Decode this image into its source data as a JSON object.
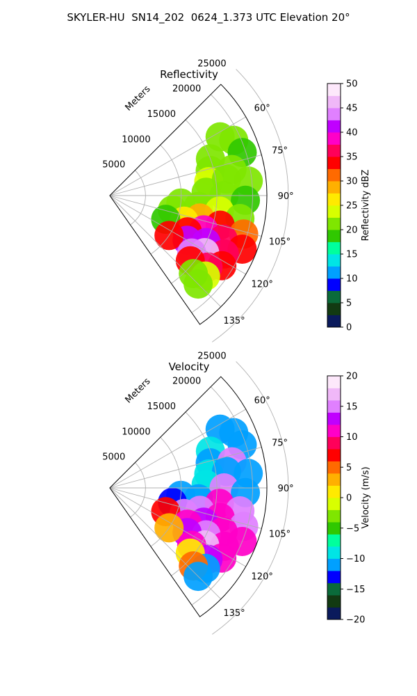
{
  "title": "SKYLER-HU  SN14_202  0624_1.373 UTC Elevation 20°",
  "chart_data": [
    {
      "type": "heatmap",
      "projection": "polar-sector",
      "title": "Reflectivity",
      "radial_label": "Meters",
      "radial_ticks": [
        "5000",
        "10000",
        "15000",
        "20000",
        "25000"
      ],
      "radial_tick_values": [
        5000,
        10000,
        15000,
        20000,
        25000
      ],
      "angle_ticks": [
        "60°",
        "75°",
        "90°",
        "105°",
        "120°",
        "135°"
      ],
      "angle_tick_values": [
        60,
        75,
        90,
        105,
        120,
        135
      ],
      "r_range": [
        0,
        22000
      ],
      "theta_range": [
        45,
        145
      ],
      "grid": true,
      "colorbar": {
        "label": "Reflectivity dBZ",
        "range": [
          0,
          50
        ],
        "ticks": [
          "0",
          "5",
          "10",
          "15",
          "20",
          "25",
          "30",
          "35",
          "40",
          "45",
          "50"
        ],
        "tick_values": [
          0,
          5,
          10,
          15,
          20,
          25,
          30,
          35,
          40,
          45,
          50
        ],
        "colors": [
          "#0a1a5c",
          "#123a12",
          "#0a6b3a",
          "#0000ff",
          "#00a0ff",
          "#00e5e5",
          "#00ff9c",
          "#30c800",
          "#7fe600",
          "#d8ff00",
          "#ffea00",
          "#ffb000",
          "#ff6a00",
          "#ff0000",
          "#ff005a",
          "#ff00c8",
          "#c000ff",
          "#e080ff",
          "#f0b8f8",
          "#fde8fb"
        ]
      },
      "cells": [
        {
          "az": 62,
          "r": 17500,
          "v": 22
        },
        {
          "az": 66,
          "r": 19000,
          "v": 21
        },
        {
          "az": 70,
          "r": 15000,
          "v": 20
        },
        {
          "az": 72,
          "r": 19500,
          "v": 19
        },
        {
          "az": 76,
          "r": 14500,
          "v": 21
        },
        {
          "az": 78,
          "r": 17500,
          "v": 22
        },
        {
          "az": 82,
          "r": 14000,
          "v": 23
        },
        {
          "az": 82,
          "r": 16500,
          "v": 22
        },
        {
          "az": 84,
          "r": 19500,
          "v": 20
        },
        {
          "az": 88,
          "r": 13500,
          "v": 22
        },
        {
          "az": 90,
          "r": 16000,
          "v": 21
        },
        {
          "az": 92,
          "r": 19000,
          "v": 19
        },
        {
          "az": 96,
          "r": 10000,
          "v": 21
        },
        {
          "az": 97,
          "r": 12500,
          "v": 22
        },
        {
          "az": 98,
          "r": 15500,
          "v": 24
        },
        {
          "az": 100,
          "r": 18500,
          "v": 20
        },
        {
          "az": 103,
          "r": 9000,
          "v": 20
        },
        {
          "az": 104,
          "r": 13000,
          "v": 28
        },
        {
          "az": 105,
          "r": 16000,
          "v": 33
        },
        {
          "az": 106,
          "r": 19500,
          "v": 30
        },
        {
          "az": 109,
          "r": 11000,
          "v": 26
        },
        {
          "az": 110,
          "r": 14000,
          "v": 38
        },
        {
          "az": 111,
          "r": 17000,
          "v": 36
        },
        {
          "az": 112,
          "r": 20000,
          "v": 34
        },
        {
          "az": 113,
          "r": 8500,
          "v": 18
        },
        {
          "az": 115,
          "r": 12000,
          "v": 33
        },
        {
          "az": 116,
          "r": 15000,
          "v": 42
        },
        {
          "az": 117,
          "r": 18000,
          "v": 37
        },
        {
          "az": 120,
          "r": 12500,
          "v": 41
        },
        {
          "az": 121,
          "r": 15500,
          "v": 47
        },
        {
          "az": 122,
          "r": 18500,
          "v": 33
        },
        {
          "az": 124,
          "r": 10000,
          "v": 34
        },
        {
          "az": 125,
          "r": 14000,
          "v": 44
        },
        {
          "az": 126,
          "r": 17000,
          "v": 36
        },
        {
          "az": 129,
          "r": 14500,
          "v": 33
        },
        {
          "az": 130,
          "r": 17500,
          "v": 24
        },
        {
          "az": 133,
          "r": 16000,
          "v": 22
        },
        {
          "az": 135,
          "r": 17500,
          "v": 20
        }
      ]
    },
    {
      "type": "heatmap",
      "projection": "polar-sector",
      "title": "Velocity",
      "radial_label": "Meters",
      "radial_ticks": [
        "5000",
        "10000",
        "15000",
        "20000",
        "25000"
      ],
      "radial_tick_values": [
        5000,
        10000,
        15000,
        20000,
        25000
      ],
      "angle_ticks": [
        "60°",
        "75°",
        "90°",
        "105°",
        "120°",
        "135°"
      ],
      "angle_tick_values": [
        60,
        75,
        90,
        105,
        120,
        135
      ],
      "r_range": [
        0,
        22000
      ],
      "theta_range": [
        45,
        145
      ],
      "grid": true,
      "colorbar": {
        "label": "Velocity (m/s)",
        "range": [
          -20,
          20
        ],
        "ticks": [
          "−20",
          "−15",
          "−10",
          "−5",
          "0",
          "5",
          "10",
          "15",
          "20"
        ],
        "tick_values": [
          -20,
          -15,
          -10,
          -5,
          0,
          5,
          10,
          15,
          20
        ],
        "colors": [
          "#0a1a5c",
          "#123a12",
          "#0a6b3a",
          "#0000ff",
          "#00a0ff",
          "#00e5e5",
          "#00ff9c",
          "#30c800",
          "#7fe600",
          "#d8ff00",
          "#ffea00",
          "#ffb000",
          "#ff6a00",
          "#ff0000",
          "#ff005a",
          "#ff00c8",
          "#c000ff",
          "#e080ff",
          "#f0b8f8",
          "#fde8fb"
        ]
      },
      "cells": [
        {
          "az": 62,
          "r": 17500,
          "v": -11
        },
        {
          "az": 66,
          "r": 19000,
          "v": -11
        },
        {
          "az": 70,
          "r": 15000,
          "v": -10
        },
        {
          "az": 72,
          "r": 19500,
          "v": -12
        },
        {
          "az": 76,
          "r": 14500,
          "v": -11
        },
        {
          "az": 78,
          "r": 17500,
          "v": 14
        },
        {
          "az": 82,
          "r": 14000,
          "v": -10
        },
        {
          "az": 82,
          "r": 16500,
          "v": -12
        },
        {
          "az": 84,
          "r": 19500,
          "v": -11
        },
        {
          "az": 88,
          "r": 13500,
          "v": -10
        },
        {
          "az": 90,
          "r": 16000,
          "v": 15
        },
        {
          "az": 92,
          "r": 19000,
          "v": -12
        },
        {
          "az": 96,
          "r": 10000,
          "v": -12
        },
        {
          "az": 97,
          "r": 12500,
          "v": -11
        },
        {
          "az": 98,
          "r": 15500,
          "v": 10
        },
        {
          "az": 100,
          "r": 18500,
          "v": 14
        },
        {
          "az": 103,
          "r": 9000,
          "v": -13
        },
        {
          "az": 104,
          "r": 13000,
          "v": 14
        },
        {
          "az": 105,
          "r": 16000,
          "v": 10
        },
        {
          "az": 106,
          "r": 19500,
          "v": 14
        },
        {
          "az": 109,
          "r": 11000,
          "v": 15
        },
        {
          "az": 110,
          "r": 14000,
          "v": 13
        },
        {
          "az": 111,
          "r": 17000,
          "v": 10
        },
        {
          "az": 112,
          "r": 20000,
          "v": 11
        },
        {
          "az": 113,
          "r": 8500,
          "v": 7
        },
        {
          "az": 115,
          "r": 12000,
          "v": 10
        },
        {
          "az": 116,
          "r": 15000,
          "v": 15
        },
        {
          "az": 117,
          "r": 18000,
          "v": 10
        },
        {
          "az": 120,
          "r": 12500,
          "v": 13
        },
        {
          "az": 121,
          "r": 15500,
          "v": 17
        },
        {
          "az": 122,
          "r": 18500,
          "v": 10
        },
        {
          "az": 124,
          "r": 10000,
          "v": 2
        },
        {
          "az": 125,
          "r": 14000,
          "v": 11
        },
        {
          "az": 126,
          "r": 17000,
          "v": 13
        },
        {
          "az": 129,
          "r": 14500,
          "v": 0
        },
        {
          "az": 130,
          "r": 17500,
          "v": -12
        },
        {
          "az": 133,
          "r": 16000,
          "v": 4
        },
        {
          "az": 135,
          "r": 17500,
          "v": -11
        }
      ]
    }
  ]
}
